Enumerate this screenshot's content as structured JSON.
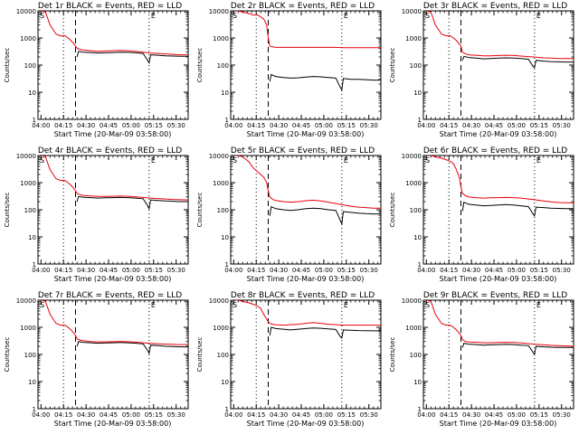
{
  "colors": {
    "events": "#000000",
    "lld": "#e8000b",
    "axes": "#000000",
    "background": "#ffffff"
  },
  "shared": {
    "xlabel": "Start Time (20-Mar-09 03:58:00)",
    "ylabel": "Counts/sec",
    "xticks": [
      "04:00",
      "04:15",
      "04:30",
      "04:45",
      "05:00",
      "05:15",
      "05:30"
    ],
    "yticks": [
      "1",
      "10",
      "100",
      "1000",
      "10000"
    ],
    "xlim_minutes": [
      0,
      100
    ],
    "ylim": [
      1,
      10000
    ],
    "yscale": "log",
    "dotted_lines_minutes": [
      17,
      74
    ],
    "dashed_line_minutes": [
      25
    ],
    "corner_markers": [
      "S",
      "E"
    ]
  },
  "chart_data": [
    {
      "type": "line",
      "title": "Det 1r BLACK = Events, RED = LLD",
      "detector": "1r",
      "series": [
        {
          "name": "Events",
          "color": "black",
          "x": [
            26,
            27,
            30,
            35,
            40,
            45,
            50,
            55,
            60,
            65,
            70,
            73,
            74,
            75,
            80,
            85,
            90,
            95,
            100
          ],
          "y": [
            200,
            320,
            300,
            290,
            280,
            285,
            290,
            300,
            295,
            285,
            270,
            150,
            120,
            240,
            230,
            220,
            215,
            210,
            210
          ]
        },
        {
          "name": "LLD",
          "color": "red",
          "x": [
            0,
            5,
            8,
            12,
            15,
            18,
            20,
            22,
            24,
            25,
            26,
            28,
            30,
            35,
            40,
            45,
            50,
            55,
            60,
            65,
            70,
            75,
            80,
            85,
            90,
            95,
            100
          ],
          "y": [
            11000,
            9000,
            3000,
            1400,
            1200,
            1200,
            1000,
            800,
            600,
            500,
            420,
            380,
            360,
            340,
            320,
            330,
            340,
            350,
            340,
            320,
            300,
            280,
            270,
            260,
            250,
            240,
            240
          ]
        }
      ]
    },
    {
      "type": "line",
      "title": "Det 2r BLACK = Events, RED = LLD",
      "detector": "2r",
      "series": [
        {
          "name": "Events",
          "color": "black",
          "x": [
            26,
            27,
            30,
            35,
            40,
            45,
            50,
            55,
            60,
            65,
            70,
            73,
            74,
            75,
            80,
            85,
            90,
            95,
            100
          ],
          "y": [
            25,
            45,
            38,
            35,
            33,
            34,
            36,
            38,
            37,
            35,
            33,
            15,
            12,
            32,
            30,
            30,
            29,
            28,
            28
          ]
        },
        {
          "name": "LLD",
          "color": "red",
          "x": [
            0,
            5,
            8,
            12,
            15,
            18,
            20,
            22,
            24,
            25,
            26,
            28,
            30,
            35,
            40,
            45,
            50,
            55,
            60,
            65,
            70,
            75,
            80,
            85,
            90,
            95,
            100
          ],
          "y": [
            11000,
            10000,
            9000,
            8000,
            7000,
            7000,
            6000,
            5000,
            3000,
            1000,
            500,
            470,
            450,
            450,
            450,
            450,
            450,
            450,
            450,
            450,
            450,
            440,
            440,
            440,
            440,
            440,
            440
          ]
        }
      ]
    },
    {
      "type": "line",
      "title": "Det 3r BLACK = Events, RED = LLD",
      "detector": "3r",
      "series": [
        {
          "name": "Events",
          "color": "black",
          "x": [
            26,
            27,
            30,
            35,
            40,
            45,
            50,
            55,
            60,
            65,
            70,
            73,
            74,
            75,
            80,
            85,
            90,
            95,
            100
          ],
          "y": [
            150,
            210,
            190,
            180,
            170,
            175,
            180,
            185,
            182,
            175,
            165,
            90,
            80,
            150,
            140,
            135,
            132,
            130,
            130
          ]
        },
        {
          "name": "LLD",
          "color": "red",
          "x": [
            0,
            5,
            8,
            12,
            15,
            18,
            20,
            22,
            24,
            25,
            26,
            28,
            30,
            35,
            40,
            45,
            50,
            55,
            60,
            65,
            70,
            75,
            80,
            85,
            90,
            95,
            100
          ],
          "y": [
            11000,
            9000,
            3000,
            1400,
            1200,
            1200,
            1000,
            800,
            600,
            500,
            300,
            260,
            240,
            230,
            220,
            220,
            225,
            230,
            225,
            215,
            205,
            195,
            185,
            180,
            175,
            175,
            175
          ]
        }
      ]
    },
    {
      "type": "line",
      "title": "Det 4r BLACK = Events, RED = LLD",
      "detector": "4r",
      "series": [
        {
          "name": "Events",
          "color": "black",
          "x": [
            26,
            27,
            30,
            35,
            40,
            45,
            50,
            55,
            60,
            65,
            70,
            73,
            74,
            75,
            80,
            85,
            90,
            95,
            100
          ],
          "y": [
            200,
            310,
            290,
            280,
            270,
            275,
            280,
            285,
            280,
            270,
            255,
            140,
            110,
            230,
            220,
            210,
            205,
            200,
            200
          ]
        },
        {
          "name": "LLD",
          "color": "red",
          "x": [
            0,
            5,
            8,
            12,
            15,
            18,
            20,
            22,
            24,
            25,
            26,
            28,
            30,
            35,
            40,
            45,
            50,
            55,
            60,
            65,
            70,
            75,
            80,
            85,
            90,
            95,
            100
          ],
          "y": [
            11000,
            9000,
            3000,
            1400,
            1200,
            1200,
            1000,
            800,
            600,
            500,
            400,
            360,
            340,
            320,
            310,
            310,
            315,
            320,
            315,
            300,
            285,
            270,
            260,
            250,
            240,
            235,
            230
          ]
        }
      ]
    },
    {
      "type": "line",
      "title": "Det 5r BLACK = Events, RED = LLD",
      "detector": "5r",
      "series": [
        {
          "name": "Events",
          "color": "black",
          "x": [
            26,
            27,
            30,
            35,
            40,
            45,
            50,
            55,
            60,
            65,
            70,
            73,
            74,
            75,
            80,
            85,
            90,
            95,
            100
          ],
          "y": [
            60,
            130,
            110,
            100,
            95,
            100,
            110,
            115,
            110,
            100,
            95,
            40,
            30,
            85,
            80,
            75,
            72,
            70,
            70
          ]
        },
        {
          "name": "LLD",
          "color": "red",
          "x": [
            0,
            5,
            8,
            12,
            15,
            18,
            20,
            22,
            24,
            25,
            26,
            28,
            30,
            35,
            40,
            45,
            50,
            55,
            60,
            65,
            70,
            75,
            80,
            85,
            90,
            95,
            100
          ],
          "y": [
            11000,
            10000,
            9000,
            6000,
            3500,
            2500,
            2000,
            1600,
            1000,
            500,
            300,
            240,
            220,
            200,
            190,
            200,
            215,
            225,
            210,
            190,
            170,
            150,
            135,
            125,
            120,
            115,
            115
          ]
        }
      ]
    },
    {
      "type": "line",
      "title": "Det 6r BLACK = Events, RED = LLD",
      "detector": "6r",
      "series": [
        {
          "name": "Events",
          "color": "black",
          "x": [
            26,
            27,
            30,
            35,
            40,
            45,
            50,
            55,
            60,
            65,
            70,
            73,
            74,
            75,
            80,
            85,
            90,
            95,
            100
          ],
          "y": [
            90,
            190,
            160,
            150,
            140,
            145,
            150,
            155,
            150,
            140,
            130,
            70,
            60,
            125,
            120,
            115,
            112,
            110,
            110
          ]
        },
        {
          "name": "LLD",
          "color": "red",
          "x": [
            0,
            5,
            8,
            12,
            15,
            18,
            20,
            22,
            24,
            25,
            26,
            28,
            30,
            35,
            40,
            45,
            50,
            55,
            60,
            65,
            70,
            75,
            80,
            85,
            90,
            95,
            100
          ],
          "y": [
            11000,
            10000,
            9000,
            8000,
            7000,
            6000,
            5000,
            3000,
            1500,
            700,
            400,
            330,
            300,
            280,
            270,
            275,
            280,
            285,
            280,
            270,
            250,
            230,
            210,
            195,
            185,
            180,
            180
          ]
        }
      ]
    },
    {
      "type": "line",
      "title": "Det 7r BLACK = Events, RED = LLD",
      "detector": "7r",
      "series": [
        {
          "name": "Events",
          "color": "black",
          "x": [
            26,
            27,
            30,
            35,
            40,
            45,
            50,
            55,
            60,
            65,
            70,
            73,
            74,
            75,
            80,
            85,
            90,
            95,
            100
          ],
          "y": [
            200,
            300,
            280,
            270,
            260,
            265,
            270,
            275,
            270,
            260,
            245,
            140,
            110,
            220,
            210,
            200,
            195,
            190,
            190
          ]
        },
        {
          "name": "LLD",
          "color": "red",
          "x": [
            0,
            5,
            8,
            12,
            15,
            18,
            20,
            22,
            24,
            25,
            26,
            28,
            30,
            35,
            40,
            45,
            50,
            55,
            60,
            65,
            70,
            75,
            80,
            85,
            90,
            95,
            100
          ],
          "y": [
            11000,
            9000,
            3000,
            1400,
            1200,
            1200,
            1000,
            800,
            600,
            500,
            380,
            340,
            320,
            300,
            290,
            290,
            295,
            300,
            295,
            285,
            270,
            255,
            245,
            240,
            235,
            230,
            230
          ]
        }
      ]
    },
    {
      "type": "line",
      "title": "Det 8r BLACK = Events, RED = LLD",
      "detector": "8r",
      "series": [
        {
          "name": "Events",
          "color": "black",
          "x": [
            26,
            27,
            30,
            35,
            40,
            45,
            50,
            55,
            60,
            65,
            70,
            73,
            74,
            75,
            80,
            85,
            90,
            95,
            100
          ],
          "y": [
            500,
            1000,
            900,
            850,
            800,
            850,
            900,
            950,
            920,
            870,
            830,
            450,
            400,
            800,
            780,
            760,
            750,
            740,
            740
          ]
        },
        {
          "name": "LLD",
          "color": "red",
          "x": [
            0,
            5,
            8,
            12,
            15,
            18,
            20,
            22,
            24,
            25,
            26,
            28,
            30,
            35,
            40,
            45,
            50,
            55,
            60,
            65,
            70,
            75,
            80,
            85,
            90,
            95,
            100
          ],
          "y": [
            11000,
            10000,
            9000,
            8000,
            7000,
            6000,
            5000,
            3000,
            2000,
            1600,
            1400,
            1300,
            1250,
            1200,
            1250,
            1300,
            1400,
            1500,
            1400,
            1300,
            1250,
            1200,
            1200,
            1200,
            1200,
            1200,
            1200
          ]
        }
      ]
    },
    {
      "type": "line",
      "title": "Det 9r BLACK = Events, RED = LLD",
      "detector": "9r",
      "series": [
        {
          "name": "Events",
          "color": "black",
          "x": [
            26,
            27,
            30,
            35,
            40,
            45,
            50,
            55,
            60,
            65,
            70,
            73,
            74,
            75,
            80,
            85,
            90,
            95,
            100
          ],
          "y": [
            180,
            260,
            240,
            230,
            220,
            225,
            230,
            235,
            230,
            220,
            210,
            120,
            100,
            200,
            190,
            185,
            182,
            180,
            180
          ]
        },
        {
          "name": "LLD",
          "color": "red",
          "x": [
            0,
            5,
            8,
            12,
            15,
            18,
            20,
            22,
            24,
            25,
            26,
            28,
            30,
            35,
            40,
            45,
            50,
            55,
            60,
            65,
            70,
            75,
            80,
            85,
            90,
            95,
            100
          ],
          "y": [
            11000,
            9000,
            3000,
            1400,
            1200,
            1200,
            1000,
            800,
            600,
            500,
            350,
            300,
            290,
            280,
            270,
            270,
            275,
            280,
            275,
            265,
            250,
            235,
            225,
            215,
            210,
            205,
            200
          ]
        }
      ]
    }
  ]
}
